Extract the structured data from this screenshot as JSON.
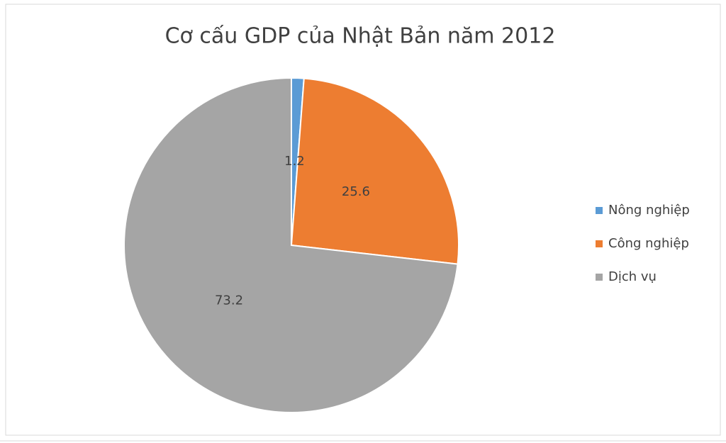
{
  "chart_data": {
    "type": "pie",
    "title": "Cơ cấu GDP của Nhật Bản năm 2012",
    "categories": [
      "Nông nghiệp",
      "Công nghiệp",
      "Dịch vụ"
    ],
    "values": [
      1.2,
      25.6,
      73.2
    ],
    "colors": [
      "#5b9bd5",
      "#ed7d31",
      "#a5a5a5"
    ],
    "legend": "right"
  }
}
